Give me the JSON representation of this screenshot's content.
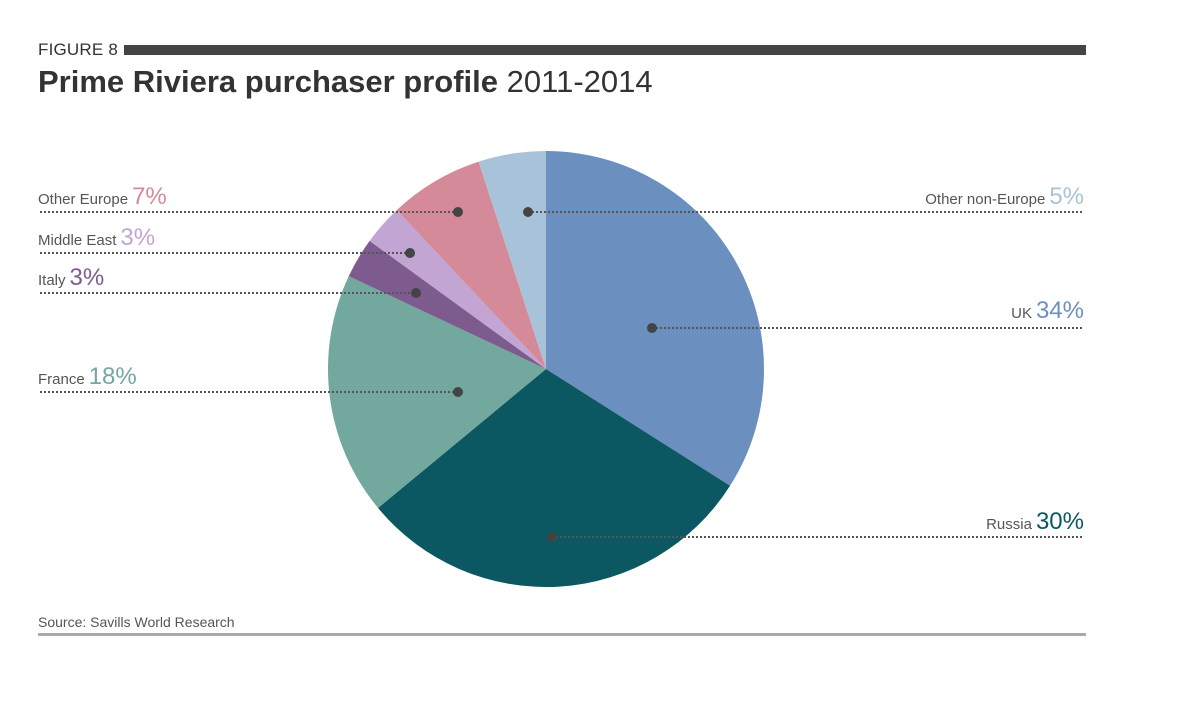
{
  "figure_label": "FIGURE 8",
  "title_bold": "Prime Riviera purchaser profile",
  "title_years": "2011-2014",
  "source": "Source: Savills World Research",
  "chart_data": {
    "type": "pie",
    "title": "Prime Riviera purchaser profile 2011-2014",
    "categories": [
      "UK",
      "Russia",
      "France",
      "Italy",
      "Middle East",
      "Other Europe",
      "Other non-Europe"
    ],
    "values": [
      34,
      30,
      18,
      3,
      3,
      7,
      5
    ],
    "colors": [
      "#6b8fbf",
      "#0b5862",
      "#72a89e",
      "#7e5b8e",
      "#c3a5d3",
      "#d48a98",
      "#a8c3d9"
    ],
    "unit": "%",
    "start_angle": "12 o'clock, clockwise",
    "source": "Savills World Research"
  },
  "labels": {
    "uk": {
      "name": "UK",
      "pct": "34%"
    },
    "russia": {
      "name": "Russia",
      "pct": "30%"
    },
    "france": {
      "name": "France",
      "pct": "18%"
    },
    "italy": {
      "name": "Italy",
      "pct": "3%"
    },
    "middle_east": {
      "name": "Middle East",
      "pct": "3%"
    },
    "other_europe": {
      "name": "Other Europe",
      "pct": "7%"
    },
    "other_non_europe": {
      "name": "Other non-Europe",
      "pct": "5%"
    }
  }
}
